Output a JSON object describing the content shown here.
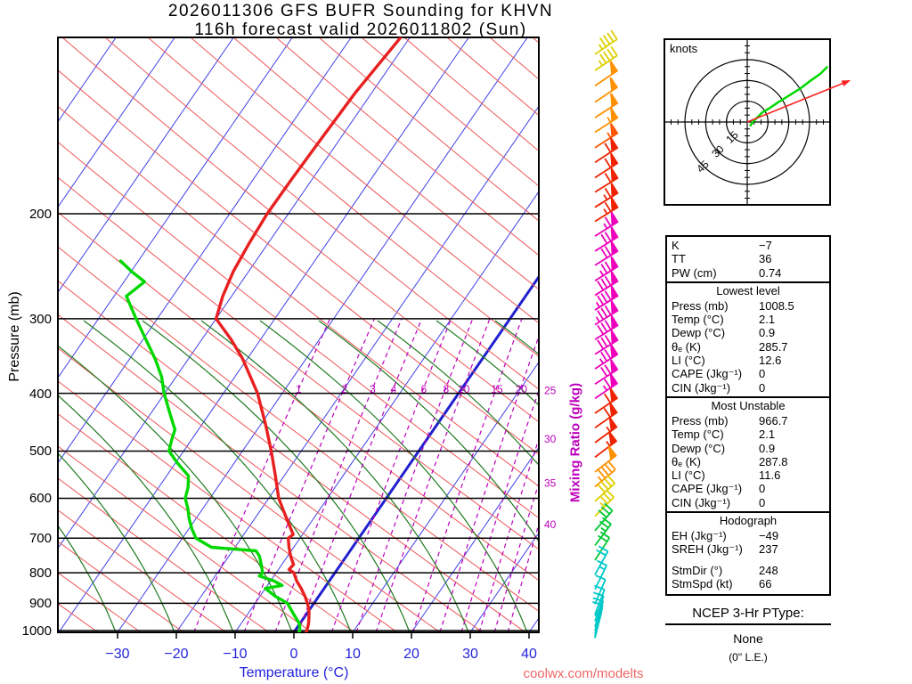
{
  "title": {
    "line1": "2026011306 GFS BUFR Sounding for KHVN",
    "line2": "116h forecast valid 2026011802 (Sun)"
  },
  "axes": {
    "pressure_label": "Pressure (mb)",
    "pressure_ticks": [
      200,
      300,
      400,
      500,
      600,
      700,
      800,
      900,
      1000
    ],
    "temp_label": "Temperature (°C)",
    "temp_ticks": [
      -30,
      -20,
      -10,
      0,
      10,
      20,
      30,
      40
    ],
    "mixing_label": "Mixing Ratio (g/kg)",
    "mixing_tick_row": [
      1,
      2,
      3,
      4,
      6,
      8,
      10,
      15,
      20
    ],
    "mixing_tick_right": [
      25,
      30,
      35,
      40
    ]
  },
  "watermark": "coolwx.com/modelts",
  "hodograph": {
    "unit_label": "knots",
    "rings_kt": [
      15,
      30,
      45
    ],
    "trace_uv_kt": [
      [
        2,
        -3
      ],
      [
        4,
        0
      ],
      [
        7,
        3
      ],
      [
        11,
        7
      ],
      [
        16,
        10
      ],
      [
        22,
        14
      ],
      [
        30,
        19
      ],
      [
        38,
        24
      ],
      [
        46,
        30
      ],
      [
        53,
        35
      ],
      [
        58,
        40
      ]
    ],
    "storm_dir_deg": 248,
    "storm_speed_kt": 66
  },
  "stats": {
    "indices": [
      [
        "K",
        "−7"
      ],
      [
        "TT",
        "36"
      ],
      [
        "PW (cm)",
        "0.74"
      ]
    ],
    "sections": [
      {
        "header": "Lowest level",
        "rows": [
          [
            "Press (mb)",
            "1008.5"
          ],
          [
            "Temp (°C)",
            "2.1"
          ],
          [
            "Dewp (°C)",
            "0.9"
          ],
          [
            "θₑ (K)",
            "285.7"
          ],
          [
            "LI (°C)",
            "12.6"
          ],
          [
            "CAPE (Jkg⁻¹)",
            "0"
          ],
          [
            "CIN (Jkg⁻¹)",
            "0"
          ]
        ]
      },
      {
        "header": "Most Unstable",
        "rows": [
          [
            "Press (mb)",
            "966.7"
          ],
          [
            "Temp (°C)",
            "2.1"
          ],
          [
            "Dewp (°C)",
            "0.9"
          ],
          [
            "θₑ (K)",
            "287.8"
          ],
          [
            "LI (°C)",
            "11.6"
          ],
          [
            "CAPE (Jkg⁻¹)",
            "0"
          ],
          [
            "CIN (Jkg⁻¹)",
            "0"
          ]
        ]
      },
      {
        "header": "Hodograph",
        "rows": [
          [
            "EH (Jkg⁻¹)",
            "−49"
          ],
          [
            "SREH (Jkg⁻¹)",
            "237"
          ]
        ],
        "rows2": [
          [
            "StmDir (°)",
            "248"
          ],
          [
            "StmSpd (kt)",
            "66"
          ]
        ]
      }
    ]
  },
  "ptype": {
    "title": "NCEP 3-Hr PType:",
    "value": "None",
    "note": "(0\" L.E.)"
  },
  "chart_data": {
    "type": "skewt-logp",
    "station": "KHVN",
    "pressure_range_mb": [
      100,
      1030
    ],
    "isotherms_c": {
      "min": -110,
      "max": 40,
      "step": 10
    },
    "mixing_ratio_lines_gkg": [
      1,
      2,
      3,
      4,
      6,
      8,
      10,
      15,
      20,
      25,
      30,
      35,
      40
    ],
    "temperature_profile_p_t": [
      [
        1008.5,
        2.1
      ],
      [
        1000,
        2.0
      ],
      [
        975,
        1.5
      ],
      [
        950,
        0.8
      ],
      [
        925,
        0.0
      ],
      [
        900,
        -1.1
      ],
      [
        875,
        -2.4
      ],
      [
        850,
        -3.9
      ],
      [
        825,
        -5.6
      ],
      [
        800,
        -7.0
      ],
      [
        790,
        -8.2
      ],
      [
        775,
        -8.0
      ],
      [
        750,
        -9.5
      ],
      [
        725,
        -10.8
      ],
      [
        700,
        -12.0
      ],
      [
        690,
        -11.6
      ],
      [
        650,
        -14.5
      ],
      [
        600,
        -18.3
      ],
      [
        550,
        -21.5
      ],
      [
        500,
        -25.1
      ],
      [
        450,
        -29.3
      ],
      [
        400,
        -34.2
      ],
      [
        350,
        -40.8
      ],
      [
        325,
        -45.0
      ],
      [
        300,
        -50.0
      ],
      [
        275,
        -51.5
      ],
      [
        250,
        -52.6
      ],
      [
        225,
        -53.2
      ],
      [
        200,
        -53.6
      ],
      [
        175,
        -53.5
      ],
      [
        150,
        -53.2
      ],
      [
        125,
        -52.8
      ],
      [
        100,
        -51.5
      ]
    ],
    "dewpoint_profile_p_t": [
      [
        1008.5,
        0.9
      ],
      [
        1000,
        0.8
      ],
      [
        975,
        0.0
      ],
      [
        950,
        -1.5
      ],
      [
        925,
        -3.0
      ],
      [
        900,
        -4.5
      ],
      [
        875,
        -7.5
      ],
      [
        860,
        -9.0
      ],
      [
        850,
        -10.0
      ],
      [
        840,
        -7.5
      ],
      [
        825,
        -9.5
      ],
      [
        810,
        -12.5
      ],
      [
        800,
        -12.3
      ],
      [
        775,
        -13.5
      ],
      [
        750,
        -14.8
      ],
      [
        735,
        -16.0
      ],
      [
        725,
        -24.0
      ],
      [
        700,
        -27.7
      ],
      [
        675,
        -29.5
      ],
      [
        650,
        -31.1
      ],
      [
        625,
        -32.5
      ],
      [
        600,
        -34.2
      ],
      [
        575,
        -35.0
      ],
      [
        550,
        -36.3
      ],
      [
        525,
        -39.5
      ],
      [
        500,
        -42.5
      ],
      [
        475,
        -43.5
      ],
      [
        460,
        -44.0
      ],
      [
        450,
        -45.0
      ],
      [
        425,
        -47.5
      ],
      [
        400,
        -50.1
      ],
      [
        375,
        -52.5
      ],
      [
        350,
        -55.7
      ],
      [
        325,
        -59.5
      ],
      [
        300,
        -63.6
      ],
      [
        275,
        -67.9
      ],
      [
        260,
        -66.5
      ],
      [
        250,
        -69.9
      ],
      [
        240,
        -73.0
      ]
    ],
    "wind_barbs_p_spd_dir_color": [
      [
        108,
        45,
        56,
        "#ddd000"
      ],
      [
        115,
        45,
        56,
        "#ddd000"
      ],
      [
        122,
        50,
        56,
        "#ff9000"
      ],
      [
        130,
        50,
        56,
        "#ff9000"
      ],
      [
        138,
        50,
        57,
        "#ff9000"
      ],
      [
        146,
        55,
        57,
        "#ff9000"
      ],
      [
        155,
        55,
        57,
        "#ff5500"
      ],
      [
        164,
        60,
        57,
        "#ee2200"
      ],
      [
        174,
        60,
        57,
        "#ee2200"
      ],
      [
        184,
        60,
        58,
        "#ee2200"
      ],
      [
        195,
        65,
        58,
        "#ee2200"
      ],
      [
        206,
        65,
        58,
        "#ee2200"
      ],
      [
        218,
        65,
        58,
        "#ee00bb"
      ],
      [
        231,
        70,
        58,
        "#ee00bb"
      ],
      [
        244,
        70,
        58,
        "#ee00bb"
      ],
      [
        259,
        75,
        58,
        "#ee00bb"
      ],
      [
        274,
        80,
        58,
        "#ee00bb"
      ],
      [
        290,
        85,
        58,
        "#ee00bb"
      ],
      [
        307,
        85,
        58,
        "#ee00bb"
      ],
      [
        325,
        80,
        58,
        "#ee00bb"
      ],
      [
        344,
        80,
        58,
        "#ee00bb"
      ],
      [
        364,
        75,
        57,
        "#ee00bb"
      ],
      [
        386,
        70,
        57,
        "#ee00bb"
      ],
      [
        408,
        65,
        56,
        "#ee00bb"
      ],
      [
        432,
        60,
        56,
        "#ee2200"
      ],
      [
        457,
        60,
        55,
        "#ee2200"
      ],
      [
        484,
        55,
        54,
        "#ee2200"
      ],
      [
        512,
        55,
        53,
        "#ee2200"
      ],
      [
        542,
        50,
        52,
        "#ff9000"
      ],
      [
        574,
        45,
        50,
        "#ff9000"
      ],
      [
        607,
        40,
        48,
        "#ddd000"
      ],
      [
        643,
        35,
        45,
        "#ddd000"
      ],
      [
        680,
        30,
        41,
        "#00c830"
      ],
      [
        720,
        25,
        37,
        "#00c830"
      ],
      [
        762,
        20,
        33,
        "#00c830"
      ],
      [
        806,
        18,
        29,
        "#00c8c8"
      ],
      [
        853,
        15,
        26,
        "#00c8c8"
      ],
      [
        903,
        12,
        23,
        "#00c8c8"
      ],
      [
        940,
        10,
        21,
        "#00c8c8"
      ],
      [
        965,
        10,
        19,
        "#00c8c8"
      ],
      [
        985,
        8,
        18,
        "#00c8c8"
      ],
      [
        1000,
        8,
        17,
        "#00c8c8"
      ],
      [
        1012,
        6,
        16,
        "#00c8c8"
      ],
      [
        1022,
        5,
        15,
        "#00c8c8"
      ],
      [
        1030,
        5,
        14,
        "#00c8c8"
      ]
    ],
    "colors": {
      "isotherm": "#4040e8",
      "zero_isotherm": "#2020d0",
      "dry_adiabat": "#ee5555",
      "moist_adiabat": "#1f7a1f",
      "mixing_ratio": "#bb00bb",
      "temperature": "#e82020",
      "dewpoint": "#00d800",
      "pressure_line": "#000000"
    }
  }
}
